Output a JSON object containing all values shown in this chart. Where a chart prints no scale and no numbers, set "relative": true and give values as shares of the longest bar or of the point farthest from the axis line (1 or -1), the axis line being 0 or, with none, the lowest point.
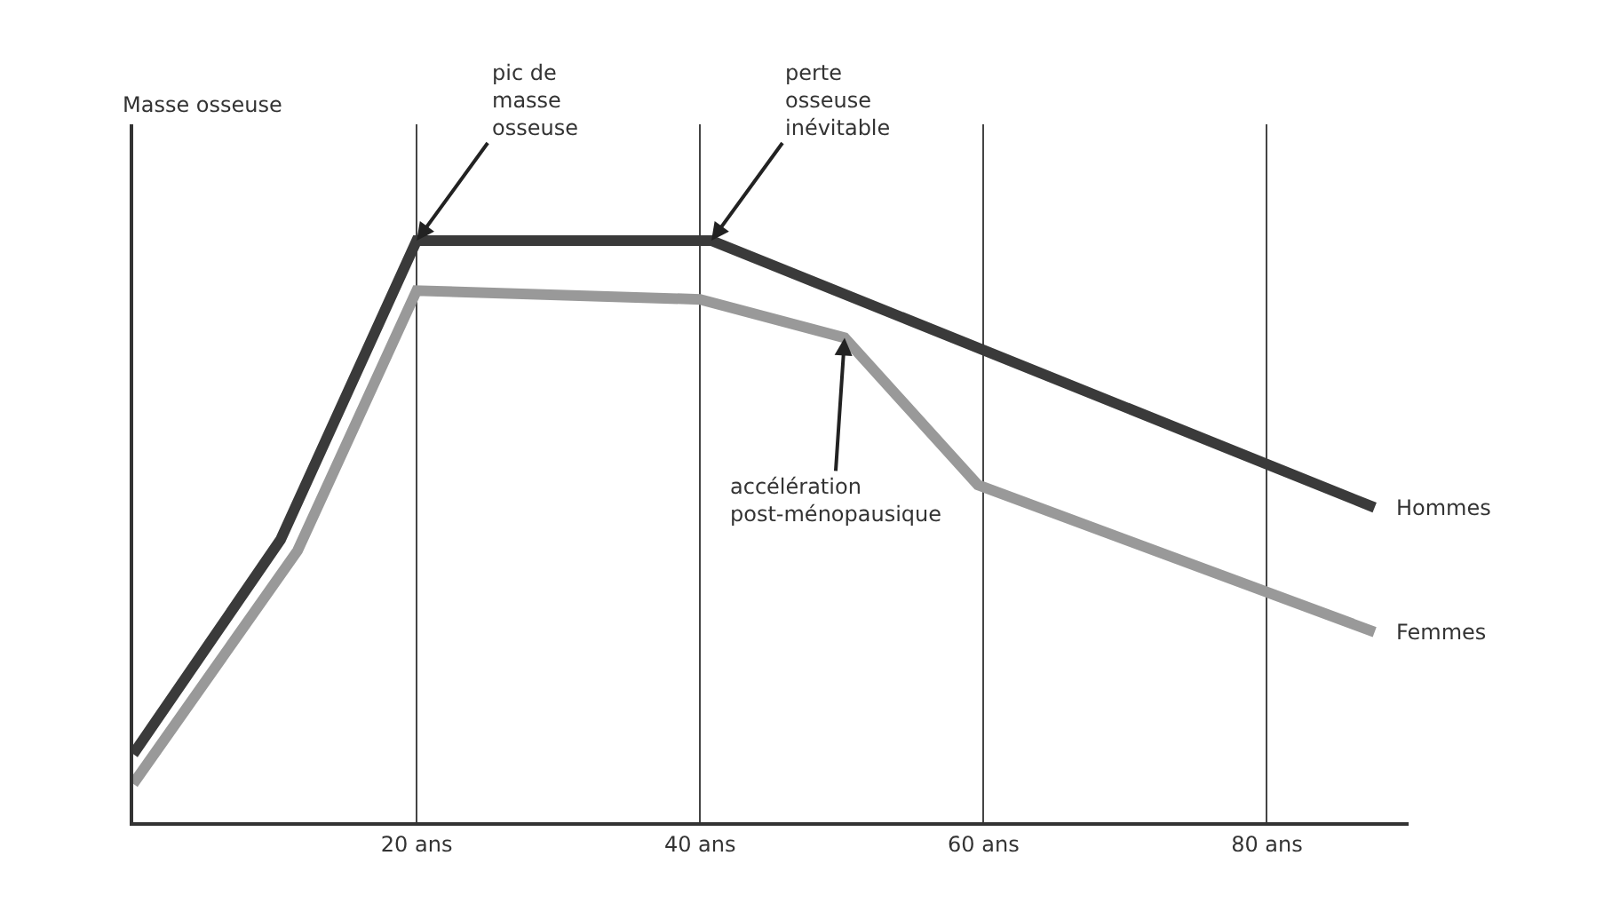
{
  "chart_data": {
    "type": "line",
    "relative": true,
    "xlim": [
      0,
      90
    ],
    "xticks": [
      {
        "value": 20,
        "label": "20 ans"
      },
      {
        "value": 40,
        "label": "40 ans"
      },
      {
        "value": 60,
        "label": "60 ans"
      },
      {
        "value": 80,
        "label": "80 ans"
      }
    ],
    "grid": "x",
    "legend": false,
    "marker": "none",
    "line_style": "solid",
    "series": [
      {
        "name": "Hommes",
        "color": "#3a3a3a",
        "x": [
          0,
          10.4,
          20,
          40.8,
          87.6
        ],
        "values": [
          0.117,
          0.486,
          1,
          1,
          0.541
        ]
      },
      {
        "name": "Femmes",
        "color": "#999999",
        "x": [
          0,
          11.6,
          20,
          40,
          50.2,
          59.6,
          87.6
        ],
        "values": [
          0.066,
          0.467,
          0.914,
          0.899,
          0.833,
          0.58,
          0.327
        ]
      }
    ],
    "annotations": [
      "Masse osseuse",
      {
        "text": "pic de\nmasse\nosseuse",
        "x": 20,
        "y": 1
      },
      {
        "text": "perte\nosseuse\ninévitable",
        "x": 40.8,
        "y": 1
      },
      {
        "text": "accélération\npost-ménopausique",
        "x": 50.2,
        "y": 0.833
      }
    ]
  }
}
